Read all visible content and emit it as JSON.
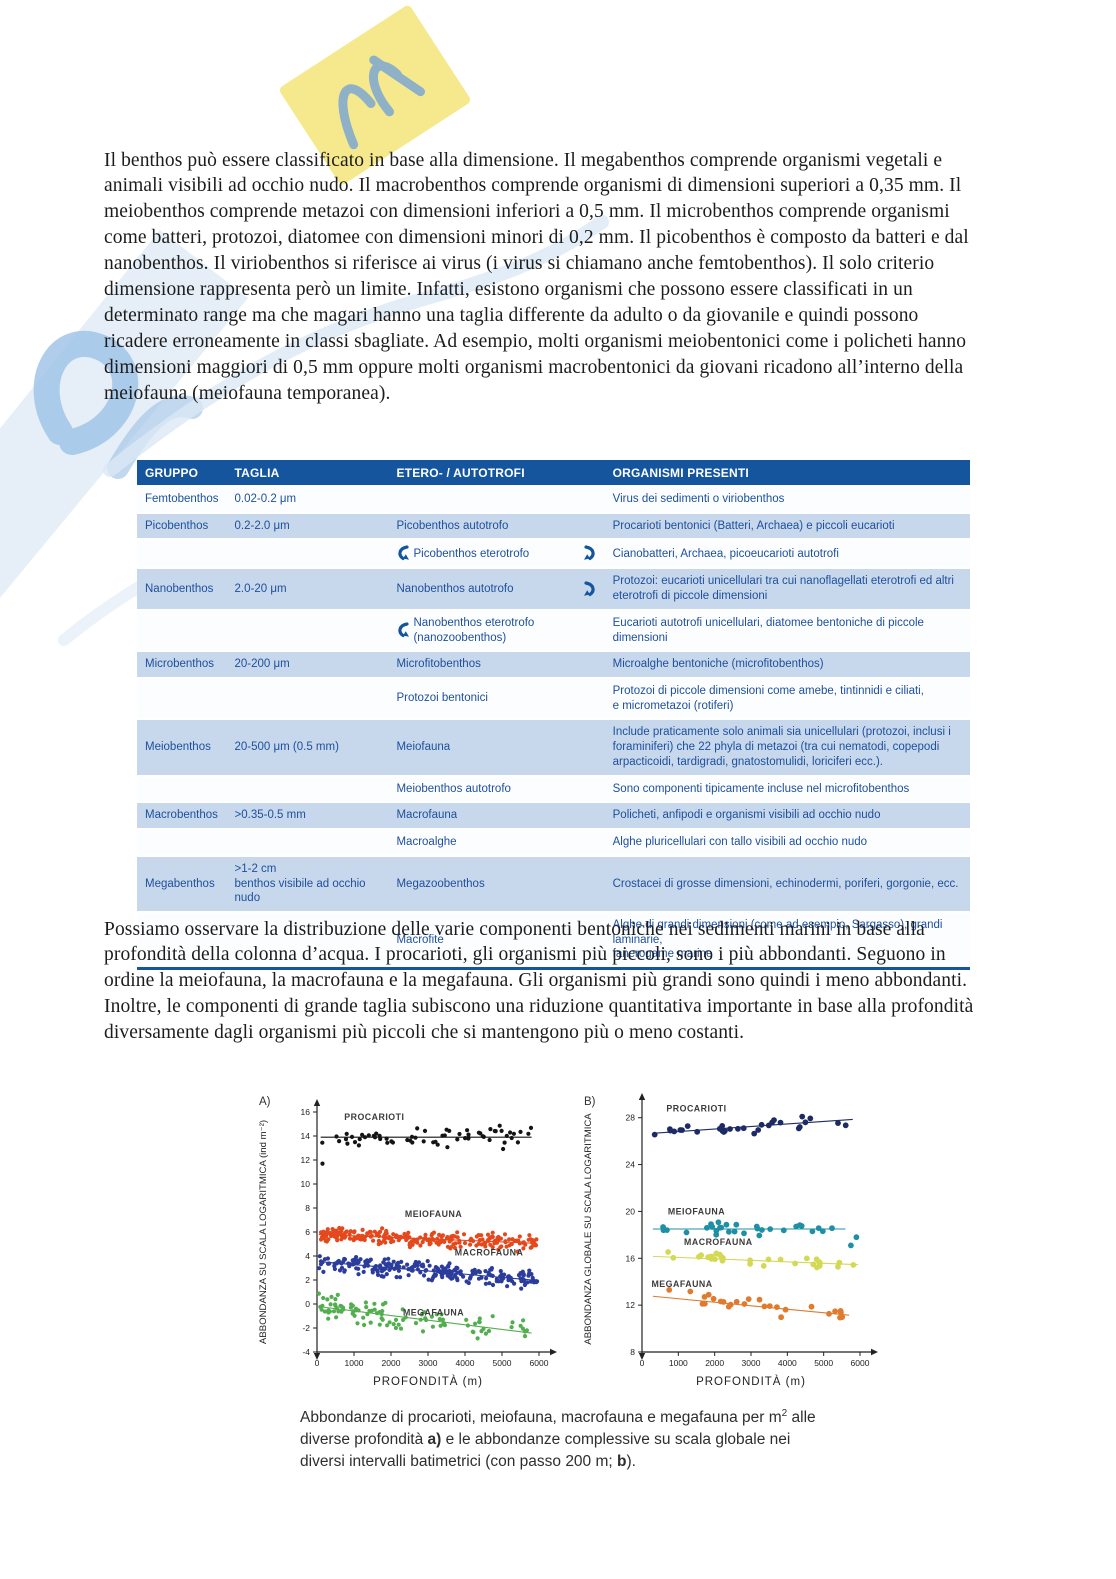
{
  "paragraph1": "Il benthos può essere classificato in base alla dimensione. Il megabenthos comprende organismi vegetali e animali visibili ad occhio nudo. Il macrobenthos comprende organismi di dimensioni superiori a 0,35 mm. Il meiobenthos comprende metazoi con dimensioni inferiori a 0,5 mm. Il microbenthos comprende organismi come batteri, protozoi, diatomee con dimensioni minori di 0,2 mm. Il picobenthos è composto da batteri e dal nanobenthos. Il viriobenthos si riferisce ai virus (i virus si chiamano anche femtobenthos). Il solo criterio dimensione rappresenta però un limite. Infatti, esistono organismi che possono essere classificati in un determinato range ma che magari hanno una taglia differente da adulto o da giovanile e quindi possono ricadere erroneamente in classi sbagliate. Ad esempio, molti organismi meiobentonici come i policheti hanno dimensioni maggiori di 0,5 mm oppure molti organismi macrobentonici da giovani ricadono all’interno della meiofauna (meiofauna temporanea).",
  "paragraph2": "Possiamo osservare la distribuzione delle varie componenti bentoniche nei sedimenti marini in base alla profondità della colonna d’acqua. I procarioti, gli organismi più piccoli, sono i più abbondanti. Seguono in ordine la meiofauna, la macrofauna e la megafauna. Gli organismi più grandi sono quindi i meno abbondanti. Inoltre, le componenti di grande taglia subiscono una riduzione quantitativa importante in base alla profondità diversamente dagli organismi più piccoli che si mantengono più o meno costanti.",
  "table": {
    "header_bg": "#15559e",
    "row_alt_bg": "#c8d8ec",
    "row_plain_bg": "#fcfdff",
    "text_color": "#1d4f9c",
    "columns": [
      "GRUPPO",
      "TAGLIA",
      "ETERO- / AUTOTROFI",
      "ORGANISMI PRESENTI"
    ],
    "col_widths": [
      "10.5%",
      "19.5%",
      "26%",
      "44%"
    ],
    "rows": [
      {
        "gruppo": "Femtobenthos",
        "taglia": "0.02-0.2 μm",
        "etero": "",
        "organismi": "Virus dei sedimenti o viriobenthos",
        "shade": false
      },
      {
        "gruppo": "Picobenthos",
        "taglia": "0.2-2.0 μm",
        "etero": "Picobenthos autotrofo",
        "organismi": "Procarioti bentonici (Batteri, Archaea) e piccoli eucarioti",
        "shade": true
      },
      {
        "gruppo": "",
        "taglia": "",
        "etero": "Picobenthos eterotrofo",
        "organismi": "Cianobatteri, Archaea, picoeucarioti autotrofi",
        "shade": false,
        "arrow_left": true,
        "arrow_right": true
      },
      {
        "gruppo": "Nanobenthos",
        "taglia": "2.0-20 μm",
        "etero": "Nanobenthos autotrofo",
        "organismi": "Protozoi: eucarioti unicellulari tra cui nanoflagellati eterotrofi ed altri eterotrofi di piccole dimensioni",
        "shade": true,
        "arrow_right": true
      },
      {
        "gruppo": "",
        "taglia": "",
        "etero": "Nanobenthos eterotrofo (nanozoobenthos)",
        "organismi": "Eucarioti autotrofi unicellulari, diatomee bentoniche di piccole dimensioni",
        "shade": false,
        "arrow_left": true
      },
      {
        "gruppo": "Microbenthos",
        "taglia": "20-200 μm",
        "etero": "Microfitobenthos",
        "organismi": "Microalghe bentoniche (microfitobenthos)",
        "shade": true
      },
      {
        "gruppo": "",
        "taglia": "",
        "etero": "Protozoi bentonici",
        "organismi": "Protozoi di piccole dimensioni come amebe, tintinnidi e ciliati,\ne micrometazoi (rotiferi)",
        "shade": false
      },
      {
        "gruppo": "Meiobenthos",
        "taglia": "20-500 μm (0.5 mm)",
        "etero": "Meiofauna",
        "organismi": "Include praticamente solo animali sia unicellulari (protozoi, inclusi i foraminiferi) che 22 phyla di metazoi (tra cui nematodi, copepodi arpacticoidi, tardigradi, gnatostomulidi, loriciferi ecc.).",
        "shade": true
      },
      {
        "gruppo": "",
        "taglia": "",
        "etero": "Meiobenthos autotrofo",
        "organismi": "Sono componenti tipicamente incluse nel microfitobenthos",
        "shade": false
      },
      {
        "gruppo": "Macrobenthos",
        "taglia": ">0.35-0.5 mm",
        "etero": "Macrofauna",
        "organismi": "Policheti, anfipodi e organismi visibili ad occhio nudo",
        "shade": true
      },
      {
        "gruppo": "",
        "taglia": "",
        "etero": "Macroalghe",
        "organismi": "Alghe pluricellulari con tallo visibili ad occhio nudo",
        "shade": false
      },
      {
        "gruppo": "Megabenthos",
        "taglia": ">1-2 cm\nbenthos visibile ad occhio nudo",
        "etero": "Megazoobenthos",
        "organismi": "Crostacei di grosse dimensioni, echinodermi, poriferi, gorgonie, ecc.",
        "shade": true
      },
      {
        "gruppo": "",
        "taglia": "",
        "etero": "Macrofite",
        "organismi": "Alghe di grandi dimensioni (come ad esempio, Sargasso), grandi laminarie,\nfanerogame marine",
        "shade": false
      }
    ]
  },
  "chart_data": [
    {
      "id": "A",
      "panel_label": "A)",
      "type": "scatter",
      "xlabel": "PROFONDITÀ (m)",
      "ylabel": "ABBONDANZA SU SCALA LOGARITMICA (ind m⁻²)",
      "xlim": [
        0,
        6000
      ],
      "ylim": [
        -4,
        16
      ],
      "xticks": [
        0,
        1000,
        2000,
        3000,
        4000,
        5000,
        6000
      ],
      "yticks": [
        -4,
        -2,
        0,
        2,
        4,
        6,
        8,
        10,
        12,
        14,
        16
      ],
      "grid": false,
      "legend": "inline-labels",
      "series": [
        {
          "name": "PROCARIOTI",
          "color": "#141414",
          "n": 65,
          "x_range": [
            100,
            5800
          ],
          "trend": {
            "y0": 13.9,
            "y1": 13.9
          },
          "noise": 0.7,
          "trendline": true,
          "label_pos": {
            "x": 1550,
            "y": 15.35
          },
          "extra_points": [
            [
              150,
              11.7
            ]
          ]
        },
        {
          "name": "MEIOFAUNA",
          "color": "#e4491e",
          "n": 240,
          "x_range": [
            50,
            5950
          ],
          "trend": {
            "y0": 5.8,
            "y1": 5.05
          },
          "noise": 0.55,
          "trendline": true,
          "label_pos": {
            "x": 3150,
            "y": 7.25
          }
        },
        {
          "name": "MACROFAUNA",
          "color": "#2b3c9c",
          "n": 240,
          "x_range": [
            50,
            5950
          ],
          "trend": {
            "y0": 3.55,
            "y1": 1.95
          },
          "noise": 0.6,
          "trendline": true,
          "label_pos": {
            "x": 4650,
            "y": 4.05
          }
        },
        {
          "name": "MEGAFAUNA",
          "color": "#53ae4f",
          "n": 105,
          "x_range": [
            50,
            5800
          ],
          "skew": 1.35,
          "trend": {
            "y0": -0.2,
            "y1": -2.5
          },
          "noise": 0.8,
          "trendline": true,
          "label_pos": {
            "x": 3150,
            "y": -0.95
          }
        }
      ]
    },
    {
      "id": "B",
      "panel_label": "B)",
      "type": "scatter",
      "xlabel": "PROFONDITÀ (m)",
      "ylabel": "ABBONDANZA GLOBALE SU SCALA LOGARITMICA",
      "xlim": [
        0,
        6000
      ],
      "ylim": [
        8,
        29
      ],
      "xticks": [
        0,
        1000,
        2000,
        3000,
        4000,
        5000,
        6000
      ],
      "yticks": [
        8,
        12,
        16,
        20,
        24,
        28
      ],
      "grid": false,
      "legend": "inline-labels",
      "series": [
        {
          "name": "PROCARIOTI",
          "color": "#1d2a66",
          "n": 30,
          "x_range": [
            300,
            5800
          ],
          "trend": {
            "y0": 26.6,
            "y1": 27.9
          },
          "noise": 0.45,
          "trendline": true,
          "label_pos": {
            "x": 1500,
            "y": 28.55
          }
        },
        {
          "name": "MEIOFAUNA",
          "color": "#1f8fa5",
          "n": 30,
          "x_range": [
            300,
            5600
          ],
          "trend": {
            "y0": 18.5,
            "y1": 18.5
          },
          "noise": 0.4,
          "trendline": true,
          "label_pos": {
            "x": 1500,
            "y": 19.75
          },
          "extra_points": [
            [
              5750,
              17.1
            ],
            [
              5900,
              17.8
            ]
          ]
        },
        {
          "name": "MACROFAUNA",
          "color": "#d3d955",
          "n": 30,
          "x_range": [
            300,
            5950
          ],
          "trend": {
            "y0": 16.2,
            "y1": 15.45
          },
          "noise": 0.35,
          "trendline": true,
          "label_pos": {
            "x": 2100,
            "y": 17.15
          }
        },
        {
          "name": "MEGAFAUNA",
          "color": "#df7a2e",
          "n": 27,
          "x_range": [
            300,
            5700
          ],
          "trend": {
            "y0": 12.85,
            "y1": 11.05
          },
          "noise": 0.55,
          "trendline": true,
          "label_pos": {
            "x": 260,
            "y": 13.55
          },
          "label_anchor": "start"
        }
      ]
    }
  ],
  "caption": {
    "segments": [
      {
        "text": "Abbondanze di procarioti, meiofauna, macrofauna e megafauna per m",
        "bold": false
      },
      {
        "text": "2",
        "bold": false,
        "sup": true
      },
      {
        "text": " alle diverse profondità ",
        "bold": false
      },
      {
        "text": "a)",
        "bold": true
      },
      {
        "text": " e le abbondanze complessive su scala globale nei diversi intervalli batimetrici (con passo 200 m; ",
        "bold": false
      },
      {
        "text": "b",
        "bold": true
      },
      {
        "text": ").",
        "bold": false
      }
    ]
  }
}
